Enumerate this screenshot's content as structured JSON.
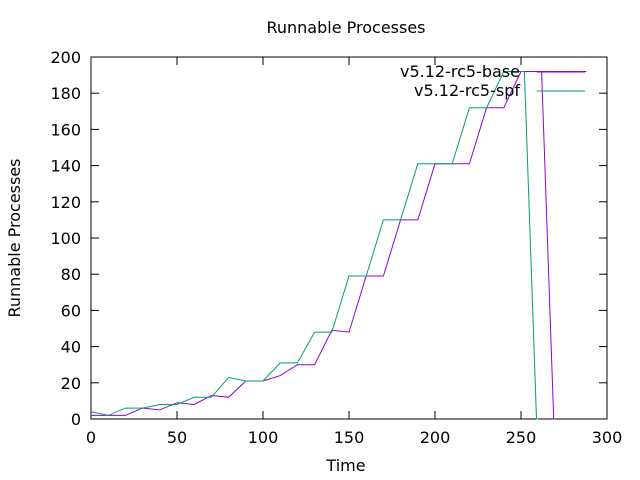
{
  "chart_data": {
    "type": "line",
    "title": "Runnable Processes",
    "xlabel": "Time",
    "ylabel": "Runnable Processes",
    "xlim": [
      0,
      300
    ],
    "ylim": [
      0,
      200
    ],
    "xticks": [
      0,
      50,
      100,
      150,
      200,
      250,
      300
    ],
    "yticks": [
      0,
      20,
      40,
      60,
      80,
      100,
      120,
      140,
      160,
      180,
      200
    ],
    "grid": false,
    "legend_position": "top-right",
    "series": [
      {
        "name": "v5.12-rc5-base",
        "color": "#9400d3",
        "x": [
          0,
          10,
          20,
          30,
          40,
          50,
          60,
          70,
          80,
          90,
          100,
          110,
          120,
          130,
          140,
          150,
          160,
          170,
          180,
          190,
          200,
          210,
          220,
          230,
          240,
          250,
          260,
          262,
          269,
          270
        ],
        "y": [
          2,
          2,
          2,
          6,
          5,
          9,
          8,
          13,
          12,
          21,
          21,
          24,
          30,
          30,
          49,
          48,
          79,
          79,
          110,
          110,
          141,
          141,
          141,
          172,
          172,
          192,
          192,
          192,
          0,
          0
        ]
      },
      {
        "name": "v5.12-rc5-spf",
        "color": "#009e73",
        "x": [
          0,
          10,
          20,
          30,
          40,
          50,
          60,
          70,
          80,
          90,
          100,
          110,
          120,
          130,
          140,
          150,
          160,
          170,
          180,
          190,
          200,
          210,
          220,
          230,
          240,
          250,
          252,
          259,
          260
        ],
        "y": [
          4,
          2,
          6,
          6,
          8,
          8,
          12,
          12,
          23,
          21,
          21,
          31,
          31,
          48,
          48,
          79,
          79,
          110,
          110,
          141,
          141,
          141,
          172,
          172,
          192,
          192,
          192,
          0,
          0
        ]
      }
    ],
    "legend_extension": {
      "series_index": 0,
      "x": [
        262,
        288
      ],
      "y": [
        192,
        192
      ]
    }
  }
}
